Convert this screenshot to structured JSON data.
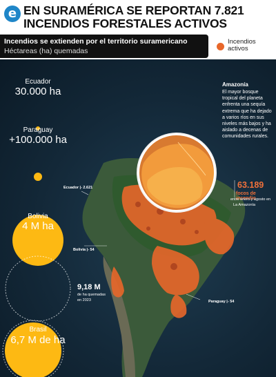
{
  "header": {
    "logo_letter": "e",
    "title": "EN SURAMÉRICA SE REPORTAN 7.821 INCENDIOS FORESTALES ACTIVOS"
  },
  "subtitle": {
    "line1": "Incendios se extienden por el territorio suramericano",
    "line2": "Héctareas (ha) quemadas"
  },
  "legend": {
    "label": "Incendios activos",
    "color": "#e8672a"
  },
  "bubbles": [
    {
      "country": "Ecuador",
      "value": "30.000 ha"
    },
    {
      "country": "Paraguay",
      "value": "+100.000 ha"
    },
    {
      "country": "Bolivia",
      "value": "4 M ha"
    },
    {
      "country": "Brasil",
      "value": "6,7 M de ha"
    }
  ],
  "amazonia": {
    "title": "Amazonía",
    "description": "El mayor bosque tropical del planeta enfrenta una sequía extrema que ha dejado a varios ríos en sus niveles más bajos y ha aislado a decenas de comunidades rurales."
  },
  "map_tags": {
    "ecuador": "Ecuador  |- 2.621",
    "bolivia": "Bolivia  |- 54",
    "paraguay": "Paraguay  |- 54"
  },
  "focus_stat": {
    "number": "63.189",
    "label": "focos de incendio",
    "period": "entre enero y agosto en",
    "region": "La Amazonía"
  },
  "brazil_stat": {
    "number": "9,18 M",
    "desc1": "de ha quemadas",
    "desc2": "en 2023"
  },
  "colors": {
    "bubble": "#fdb913",
    "fire": "#e8672a",
    "stat_accent": "#f0703a",
    "logo": "#1f86c8"
  }
}
